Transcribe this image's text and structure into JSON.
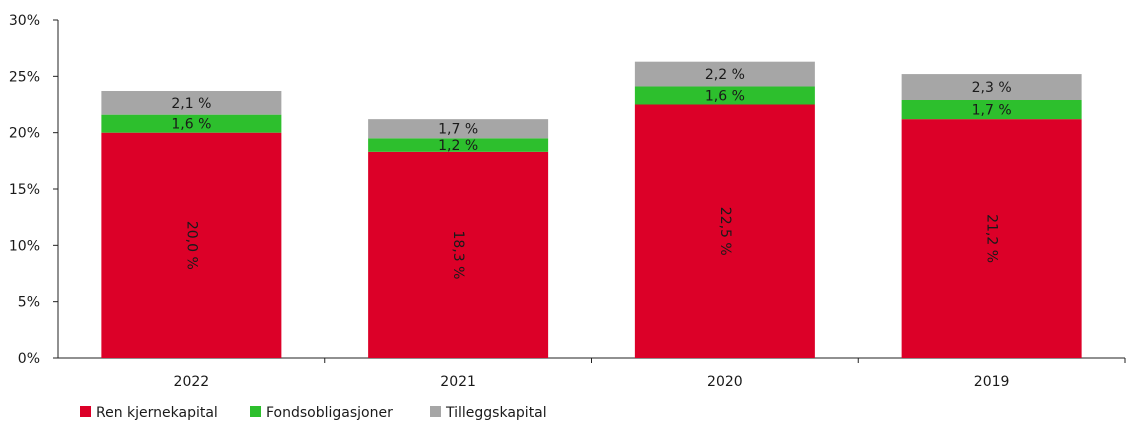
{
  "chart_data": {
    "type": "bar",
    "stacked": true,
    "categories": [
      "2022",
      "2021",
      "2020",
      "2019"
    ],
    "series": [
      {
        "name": "Ren kjernekapital",
        "color": "#dc0028",
        "values": [
          20.0,
          18.3,
          22.5,
          21.2
        ],
        "labels": [
          "20,0 %",
          "18,3 %",
          "22,5 %",
          "21,2 %"
        ],
        "label_rotated": true
      },
      {
        "name": "Fondsobligasjoner",
        "color": "#2dbf2d",
        "values": [
          1.6,
          1.2,
          1.6,
          1.7
        ],
        "labels": [
          "1,6 %",
          "1,2 %",
          "1,6 %",
          "1,7 %"
        ]
      },
      {
        "name": "Tilleggskapital",
        "color": "#a6a6a6",
        "values": [
          2.1,
          1.7,
          2.2,
          2.3
        ],
        "labels": [
          "2,1 %",
          "1,7 %",
          "2,2 %",
          "2,3 %"
        ]
      }
    ],
    "y_ticks": [
      "0%",
      "5%",
      "10%",
      "15%",
      "20%",
      "25%",
      "30%"
    ],
    "ylim": [
      0,
      30
    ],
    "grid": false,
    "legend_position": "bottom-left"
  }
}
